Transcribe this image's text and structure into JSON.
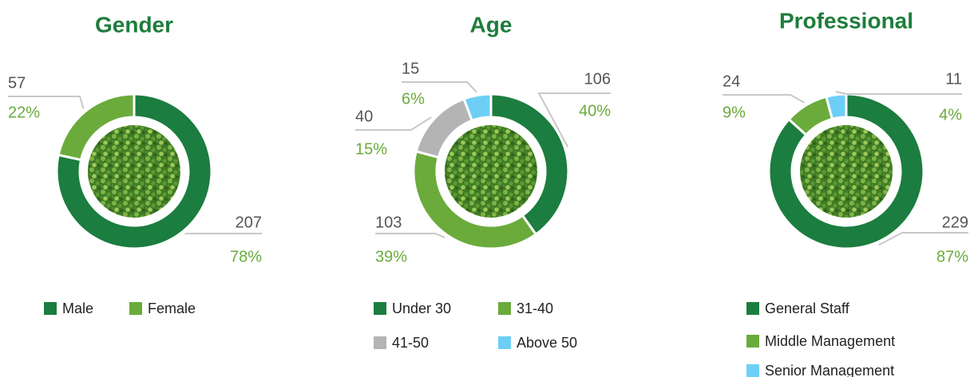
{
  "chart_data": [
    {
      "type": "pie",
      "title": "Gender",
      "categories": [
        "Male",
        "Female"
      ],
      "values": [
        207,
        57
      ],
      "shares": [
        78,
        22
      ],
      "share_labels": [
        "78%",
        "22%"
      ],
      "colors": [
        "#1b7d3f",
        "#6aab3c"
      ]
    },
    {
      "type": "pie",
      "title": "Age",
      "categories": [
        "Under 30",
        "31-40",
        "41-50",
        "Above 50"
      ],
      "values": [
        106,
        103,
        40,
        15
      ],
      "shares": [
        40,
        39,
        15,
        6
      ],
      "share_labels": [
        "40%",
        "39%",
        "15%",
        "6%"
      ],
      "colors": [
        "#1b7d3f",
        "#6aab3c",
        "#b4b4b5",
        "#6dcff6"
      ]
    },
    {
      "type": "pie",
      "title": "Professional",
      "categories": [
        "General Staff",
        "Middle Management",
        "Senior Management"
      ],
      "values": [
        229,
        24,
        11
      ],
      "shares": [
        87,
        9,
        4
      ],
      "share_labels": [
        "87%",
        "9%",
        "4%"
      ],
      "colors": [
        "#1b7d3f",
        "#6aab3c",
        "#6dcff6"
      ]
    }
  ]
}
